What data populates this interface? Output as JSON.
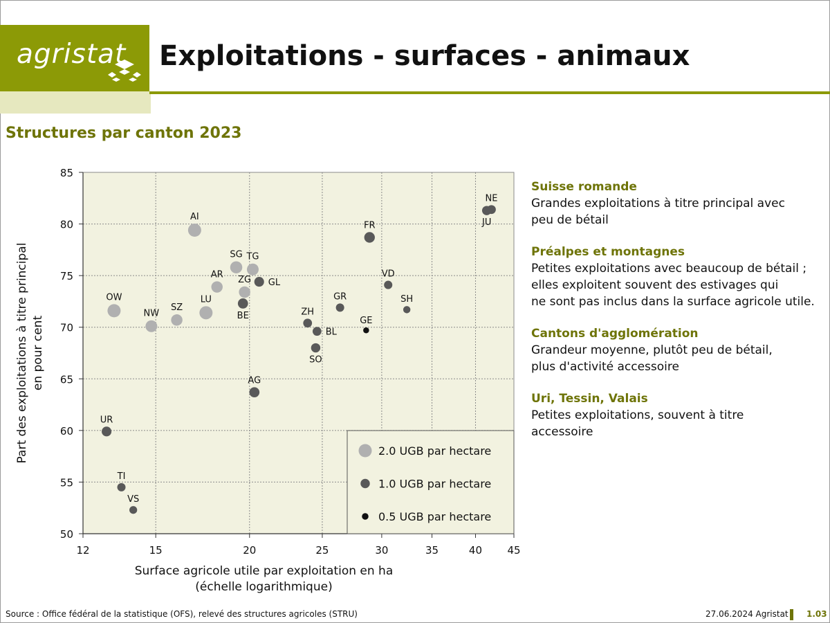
{
  "header": {
    "logo_text": "agristat",
    "title": "Exploitations - surfaces - animaux",
    "subtitle": "Structures par canton 2023",
    "colors": {
      "brand_olive": "#8c9a06",
      "brand_light": "#e6e8bf",
      "heading_olive": "#6e7408"
    }
  },
  "chart_data": {
    "type": "scatter",
    "title": "Structures par canton 2023",
    "xlabel": "Surface agricole utile par exploitation en ha",
    "xlabel_note": "(échelle logarithmique)",
    "ylabel": "Part des exploitations à titre principal",
    "ylabel_note": "en pour cent",
    "x_scale": "log",
    "xlim": [
      12,
      45
    ],
    "ylim": [
      50,
      85
    ],
    "x_ticks": [
      12,
      15,
      20,
      25,
      30,
      35,
      40,
      45
    ],
    "y_ticks": [
      50,
      55,
      60,
      65,
      70,
      75,
      80,
      85
    ],
    "grid": true,
    "plot_background": "#f2f2e0",
    "size_encoding": "UGB par hectare",
    "legend": {
      "placement": "bottom-right",
      "entries": [
        {
          "label": "2.0 UGB par hectare",
          "ugb": 2.0,
          "color": "#b0b0b0"
        },
        {
          "label": "1.0 UGB par hectare",
          "ugb": 1.0,
          "color": "#595959"
        },
        {
          "label": "0.5 UGB par hectare",
          "ugb": 0.5,
          "color": "#111111"
        }
      ]
    },
    "points": [
      {
        "label": "AI",
        "x": 16.9,
        "y": 79.4,
        "ugb": 2.0,
        "lpos": "above"
      },
      {
        "label": "OW",
        "x": 13.2,
        "y": 71.6,
        "ugb": 2.0,
        "lpos": "above"
      },
      {
        "label": "LU",
        "x": 17.5,
        "y": 71.4,
        "ugb": 2.0,
        "lpos": "above"
      },
      {
        "label": "NW",
        "x": 14.8,
        "y": 70.1,
        "ugb": 1.6,
        "lpos": "above"
      },
      {
        "label": "SZ",
        "x": 16.0,
        "y": 70.7,
        "ugb": 1.5,
        "lpos": "above"
      },
      {
        "label": "SG",
        "x": 19.2,
        "y": 75.8,
        "ugb": 1.7,
        "lpos": "above"
      },
      {
        "label": "TG",
        "x": 20.2,
        "y": 75.6,
        "ugb": 1.6,
        "lpos": "above"
      },
      {
        "label": "AR",
        "x": 18.1,
        "y": 73.9,
        "ugb": 1.5,
        "lpos": "above"
      },
      {
        "label": "ZG",
        "x": 19.7,
        "y": 73.4,
        "ugb": 1.5,
        "lpos": "above"
      },
      {
        "label": "GL",
        "x": 20.6,
        "y": 74.4,
        "ugb": 1.1,
        "lpos": "right"
      },
      {
        "label": "BE",
        "x": 19.6,
        "y": 72.3,
        "ugb": 1.2,
        "lpos": "below"
      },
      {
        "label": "FR",
        "x": 28.9,
        "y": 78.7,
        "ugb": 1.3,
        "lpos": "above"
      },
      {
        "label": "NE",
        "x": 42.0,
        "y": 81.4,
        "ugb": 0.9,
        "lpos": "above"
      },
      {
        "label": "JU",
        "x": 41.4,
        "y": 81.3,
        "ugb": 1.0,
        "lpos": "below"
      },
      {
        "label": "VD",
        "x": 30.6,
        "y": 74.1,
        "ugb": 0.8,
        "lpos": "above"
      },
      {
        "label": "SH",
        "x": 32.4,
        "y": 71.7,
        "ugb": 0.6,
        "lpos": "above"
      },
      {
        "label": "GR",
        "x": 26.4,
        "y": 71.9,
        "ugb": 0.8,
        "lpos": "above"
      },
      {
        "label": "GE",
        "x": 28.6,
        "y": 69.7,
        "ugb": 0.4,
        "lpos": "above"
      },
      {
        "label": "ZH",
        "x": 23.9,
        "y": 70.4,
        "ugb": 0.9,
        "lpos": "above"
      },
      {
        "label": "BL",
        "x": 24.6,
        "y": 69.6,
        "ugb": 0.9,
        "lpos": "right"
      },
      {
        "label": "SO",
        "x": 24.5,
        "y": 68.0,
        "ugb": 1.0,
        "lpos": "below"
      },
      {
        "label": "AG",
        "x": 20.3,
        "y": 63.7,
        "ugb": 1.2,
        "lpos": "above"
      },
      {
        "label": "UR",
        "x": 12.9,
        "y": 59.9,
        "ugb": 1.1,
        "lpos": "above"
      },
      {
        "label": "TI",
        "x": 13.5,
        "y": 54.5,
        "ugb": 0.8,
        "lpos": "above"
      },
      {
        "label": "VS",
        "x": 14.0,
        "y": 52.3,
        "ugb": 0.7,
        "lpos": "above"
      }
    ]
  },
  "notes": [
    {
      "title": "Suisse romande",
      "lines": [
        "Grandes exploitations à titre principal avec",
        "peu de bétail"
      ]
    },
    {
      "title": "Préalpes et montagnes",
      "lines": [
        "Petites exploitations avec beaucoup de bétail ;",
        "elles exploitent souvent des estivages qui",
        "ne sont pas inclus dans la surface agricole utile."
      ]
    },
    {
      "title": "Cantons d'agglomération",
      "lines": [
        "Grandeur moyenne, plutôt peu de bétail,",
        "plus d'activité accessoire"
      ]
    },
    {
      "title": "Uri, Tessin, Valais",
      "lines": [
        "Petites exploitations, souvent à titre",
        "accessoire"
      ]
    }
  ],
  "footer": {
    "source": "Source : Office fédéral de la statistique (OFS), relevé des structures agricoles (STRU)",
    "date": "27.06.2024 Agristat",
    "page": "1.03"
  }
}
